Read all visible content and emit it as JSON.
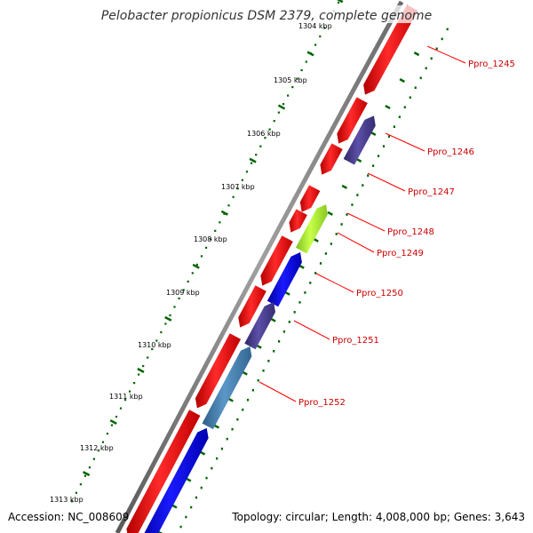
{
  "title": "Pelobacter propionicus DSM 2379, complete genome",
  "footer": {
    "accession": "Accession: NC_008609",
    "topology": "Topology: circular; Length: 4,008,000 bp; Genes: 3,643"
  },
  "colors": {
    "backbone": "#808080",
    "forward_gene": "#ff0000",
    "reverse_gene": "#0000ff",
    "tick": "#006400",
    "label": "#cc0000",
    "label_line": "#ff0000"
  },
  "kbp_labels": [
    "1304 kbp",
    "1305 kbp",
    "1306 kbp",
    "1307 kbp",
    "1308 kbp",
    "1309 kbp",
    "1310 kbp",
    "1311 kbp",
    "1312 kbp",
    "1313 kbp"
  ],
  "gene_labels": [
    "Ppro_1245",
    "Ppro_1246",
    "Ppro_1247",
    "Ppro_1248",
    "Ppro_1249",
    "Ppro_1250",
    "Ppro_1251",
    "Ppro_1252"
  ],
  "genes": [
    {
      "strand": "forward",
      "color": "#ff0000"
    },
    {
      "strand": "forward",
      "color": "#ff0000"
    },
    {
      "strand": "forward",
      "color": "#ff0000"
    },
    {
      "strand": "forward",
      "color": "#ff0000"
    },
    {
      "strand": "forward",
      "color": "#ff0000"
    },
    {
      "strand": "forward",
      "color": "#ff0000"
    },
    {
      "strand": "forward",
      "color": "#ff0000"
    },
    {
      "strand": "forward",
      "color": "#ff0000"
    },
    {
      "strand": "forward",
      "color": "#ff0000"
    },
    {
      "strand": "reverse",
      "color": "#483d8b"
    },
    {
      "strand": "reverse",
      "color": "#adff2f"
    },
    {
      "strand": "reverse",
      "color": "#0000ff"
    },
    {
      "strand": "reverse",
      "color": "#483d8b"
    },
    {
      "strand": "reverse",
      "color": "#4682b4"
    },
    {
      "strand": "reverse",
      "color": "#0000ff"
    }
  ]
}
